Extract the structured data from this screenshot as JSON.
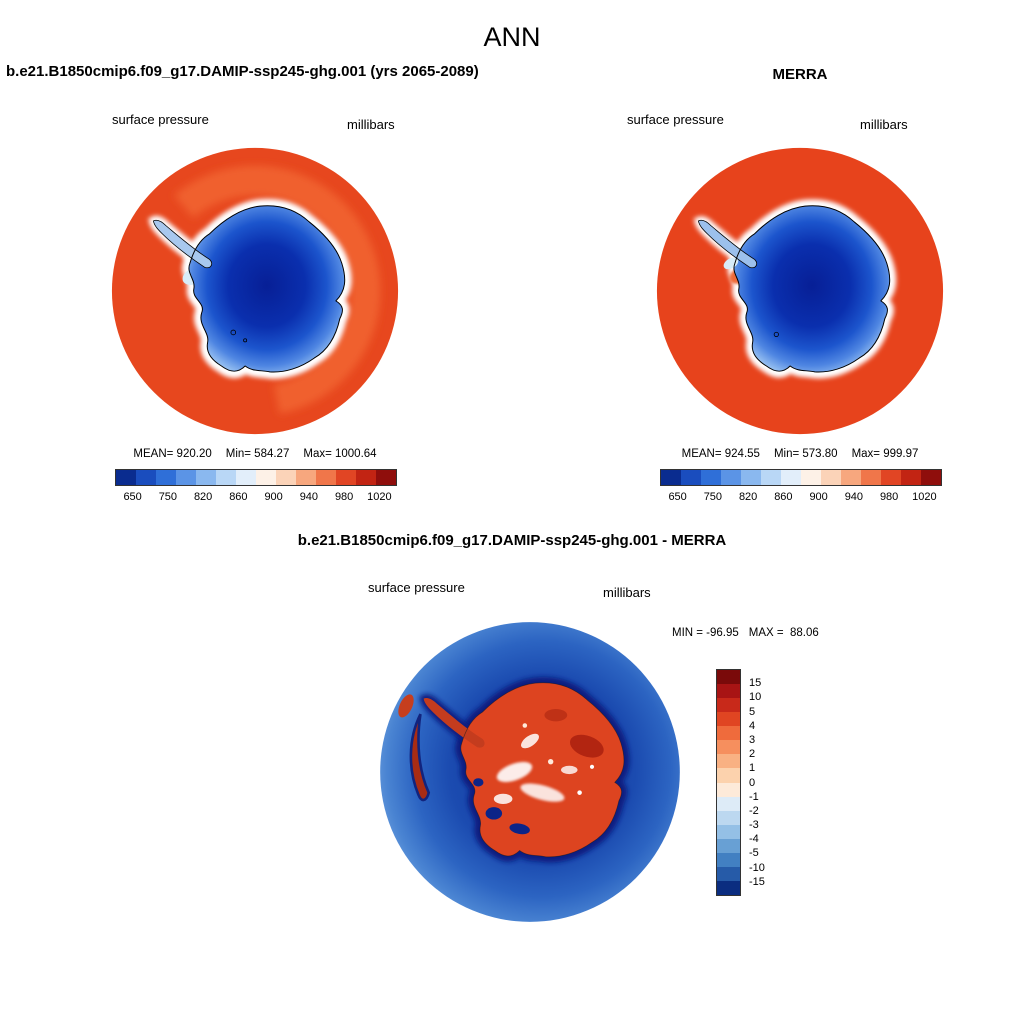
{
  "figure": {
    "title": "ANN"
  },
  "panels": {
    "model": {
      "title": "b.e21.B1850cmip6.f09_g17.DAMIP-ssp245-ghg.001 (yrs 2065-2089)",
      "field_label": "surface pressure",
      "units": "millibars",
      "stats": {
        "mean": "MEAN= 920.20",
        "min": "Min= 584.27",
        "max": "Max= 1000.64"
      }
    },
    "obs": {
      "title": "MERRA",
      "field_label": "surface pressure",
      "units": "millibars",
      "stats": {
        "mean": "MEAN= 924.55",
        "min": "Min= 573.80",
        "max": "Max= 999.97"
      }
    },
    "diff": {
      "title": "b.e21.B1850cmip6.f09_g17.DAMIP-ssp245-ghg.001 - MERRA",
      "field_label": "surface pressure",
      "units": "millibars",
      "stats": {
        "min": "MIN = -96.95",
        "max": "MAX =  88.06"
      }
    }
  },
  "colorbars": {
    "pressure": {
      "ticks": [
        "650",
        "750",
        "820",
        "860",
        "900",
        "940",
        "980",
        "1020"
      ],
      "colors": [
        "#0a2c8f",
        "#1a4dbe",
        "#2f6fd8",
        "#5b94e6",
        "#8ab8ef",
        "#b9d7f6",
        "#e2eefa",
        "#fdf1e7",
        "#fbd3b8",
        "#f7a77e",
        "#f0764a",
        "#e14524",
        "#c22413",
        "#8f0e0c"
      ]
    },
    "difference": {
      "labels": [
        "15",
        "10",
        "5",
        "4",
        "3",
        "2",
        "1",
        "0",
        "-1",
        "-2",
        "-3",
        "-4",
        "-5",
        "-10",
        "-15"
      ],
      "colors": [
        "#7a0a0a",
        "#a81414",
        "#c8291a",
        "#e04522",
        "#ef6b3c",
        "#f68f5e",
        "#f9b183",
        "#fcd2ad",
        "#fdead9",
        "#ddebf7",
        "#bcd8f0",
        "#94c0e6",
        "#68a0d4",
        "#4280c2",
        "#265ba8",
        "#0b2d80"
      ]
    }
  },
  "chart_data": [
    {
      "type": "heatmap",
      "subtype": "south-polar-stereographic-map",
      "title": "b.e21.B1850cmip6.f09_g17.DAMIP-ssp245-ghg.001 (yrs 2065-2089)",
      "variable": "surface pressure",
      "units": "millibars",
      "region": "Antarctica / southern polar cap",
      "stats": {
        "mean": 920.2,
        "min": 584.27,
        "max": 1000.64
      },
      "colorbar_ticks": [
        650,
        750,
        820,
        860,
        900,
        940,
        980,
        1020
      ],
      "legend_position": "bottom"
    },
    {
      "type": "heatmap",
      "subtype": "south-polar-stereographic-map",
      "title": "MERRA",
      "variable": "surface pressure",
      "units": "millibars",
      "region": "Antarctica / southern polar cap",
      "stats": {
        "mean": 924.55,
        "min": 573.8,
        "max": 999.97
      },
      "colorbar_ticks": [
        650,
        750,
        820,
        860,
        900,
        940,
        980,
        1020
      ],
      "legend_position": "bottom"
    },
    {
      "type": "heatmap",
      "subtype": "south-polar-stereographic-map",
      "title": "b.e21.B1850cmip6.f09_g17.DAMIP-ssp245-ghg.001 - MERRA",
      "variable": "surface pressure difference",
      "units": "millibars",
      "region": "Antarctica / southern polar cap",
      "stats": {
        "min": -96.95,
        "max": 88.06
      },
      "colorbar_ticks": [
        15,
        10,
        5,
        4,
        3,
        2,
        1,
        0,
        -1,
        -2,
        -3,
        -4,
        -5,
        -10,
        -15
      ],
      "legend_position": "right"
    }
  ]
}
